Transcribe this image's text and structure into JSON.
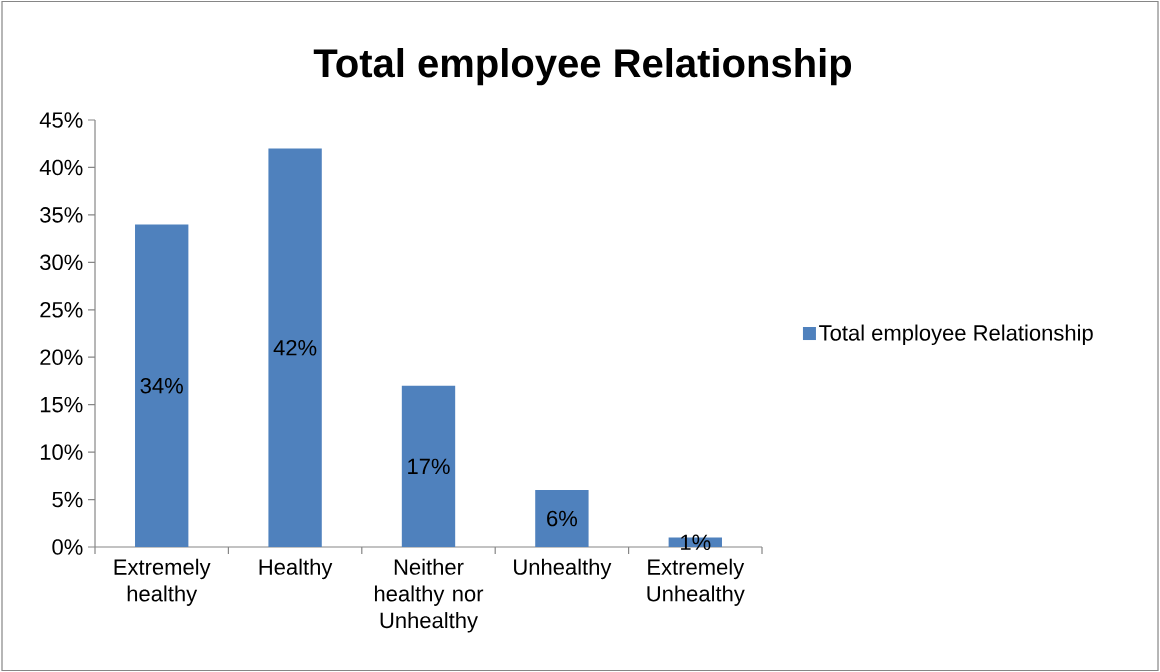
{
  "chart_data": {
    "type": "bar",
    "title": "Total employee Relationship",
    "categories": [
      "Extremely healthy",
      "Healthy",
      "Neither healthy nor Unhealthy",
      "Unhealthy",
      "Extremely Unhealthy"
    ],
    "series": [
      {
        "name": "Total employee Relationship",
        "color": "#4f81bd",
        "values": [
          34,
          42,
          17,
          6,
          1
        ],
        "value_labels": [
          "34%",
          "42%",
          "17%",
          "6%",
          "1%"
        ]
      }
    ],
    "ylim": [
      0,
      45
    ],
    "yticks": [
      {
        "value": 0,
        "label": "0%"
      },
      {
        "value": 5,
        "label": "5%"
      },
      {
        "value": 10,
        "label": "10%"
      },
      {
        "value": 15,
        "label": "15%"
      },
      {
        "value": 20,
        "label": "20%"
      },
      {
        "value": 25,
        "label": "25%"
      },
      {
        "value": 30,
        "label": "30%"
      },
      {
        "value": 35,
        "label": "35%"
      },
      {
        "value": 40,
        "label": "40%"
      },
      {
        "value": 45,
        "label": "45%"
      }
    ],
    "legend": "right"
  }
}
